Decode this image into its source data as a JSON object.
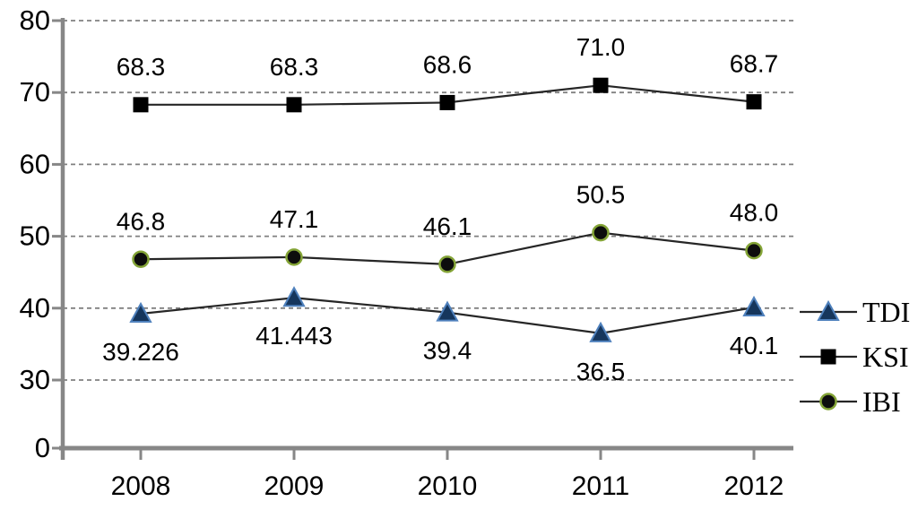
{
  "chart_data": {
    "type": "line",
    "title": "",
    "xlabel": "",
    "ylabel": "",
    "categories": [
      "2008",
      "2009",
      "2010",
      "2011",
      "2012"
    ],
    "series": [
      {
        "name": "TDI",
        "values": [
          39.226,
          41.443,
          39.4,
          36.5,
          40.1
        ],
        "labels": [
          "39.226",
          "41.443",
          "39.4",
          "36.5",
          "40.1"
        ],
        "label_position": "below",
        "marker": "triangle",
        "marker_fill": "#16365c",
        "marker_stroke": "#4f81bd",
        "line_color": "#262626"
      },
      {
        "name": "KSI",
        "values": [
          68.3,
          68.3,
          68.6,
          71.0,
          68.7
        ],
        "labels": [
          "68.3",
          "68.3",
          "68.6",
          "71.0",
          "68.7"
        ],
        "label_position": "above",
        "marker": "square",
        "marker_fill": "#000000",
        "marker_stroke": "#000000",
        "line_color": "#262626"
      },
      {
        "name": "IBI",
        "values": [
          46.8,
          47.1,
          46.1,
          50.5,
          48.0
        ],
        "labels": [
          "46.8",
          "47.1",
          "46.1",
          "50.5",
          "48.0"
        ],
        "label_position": "above",
        "marker": "circle",
        "marker_fill": "#0d0d0d",
        "marker_stroke": "#84a437",
        "line_color": "#262626"
      }
    ],
    "y_ticks": [
      0,
      30,
      40,
      50,
      60,
      70,
      80
    ],
    "y_tick_labels": [
      "0",
      "30",
      "40",
      "50",
      "60",
      "70",
      "80"
    ],
    "axis_note": "broken value axis: 0 then 30 to 80",
    "grid": "dashed horizontal gridlines",
    "gridline_color": "#808080",
    "axis_color": "#878787",
    "text_color": "#000000",
    "legend": [
      "TDI",
      "KSI",
      "IBI"
    ],
    "legend_position": "right"
  }
}
